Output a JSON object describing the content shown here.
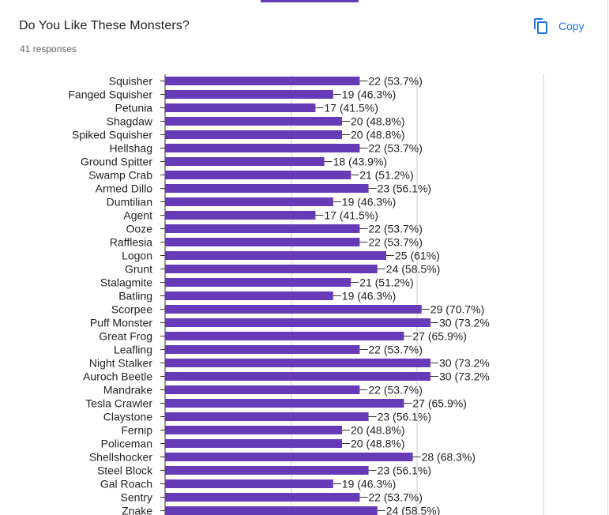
{
  "question": {
    "title": "Do You Like These Monsters?",
    "responses": "41 responses"
  },
  "toolbar": {
    "copy_label": "Copy",
    "copy_icon": "copy-icon",
    "accent_color": "#673ab7",
    "link_color": "#1a73e8"
  },
  "chart_data": {
    "type": "bar",
    "orientation": "horizontal",
    "bar_color": "#673ab7",
    "xlim": [
      0,
      41
    ],
    "grid": true,
    "categories": [
      "Squisher",
      "Fanged Squisher",
      "Petunia",
      "Shagdaw",
      "Spiked Squisher",
      "Hellshag",
      "Ground Spitter",
      "Swamp Crab",
      "Armed Dillo",
      "Dumtilian",
      "Agent",
      "Ooze",
      "Rafflesia",
      "Logon",
      "Grunt",
      "Stalagmite",
      "Batling",
      "Scorpee",
      "Puff Monster",
      "Great Frog",
      "Leafling",
      "Night Stalker",
      "Auroch Beetle",
      "Mandrake",
      "Tesla Crawler",
      "Claystone",
      "Fernip",
      "Policeman",
      "Shellshocker",
      "Steel Block",
      "Gal Roach",
      "Sentry",
      "Znake"
    ],
    "values": [
      22,
      19,
      17,
      20,
      20,
      22,
      18,
      21,
      23,
      19,
      17,
      22,
      22,
      25,
      24,
      21,
      19,
      29,
      30,
      27,
      22,
      30,
      30,
      22,
      27,
      23,
      20,
      20,
      28,
      23,
      19,
      22,
      24
    ],
    "data_labels": [
      "22 (53.7%)",
      "19 (46.3%)",
      "17 (41.5%)",
      "20 (48.8%)",
      "20 (48.8%)",
      "22 (53.7%)",
      "18 (43.9%)",
      "21 (51.2%)",
      "23 (56.1%)",
      "19 (46.3%)",
      "17 (41.5%)",
      "22 (53.7%)",
      "22 (53.7%)",
      "25 (61%)",
      "24 (58.5%)",
      "21 (51.2%)",
      "19 (46.3%)",
      "29 (70.7%)",
      "30 (73.2%",
      "27 (65.9%)",
      "22 (53.7%)",
      "30 (73.2%",
      "30 (73.2%",
      "22 (53.7%)",
      "27 (65.9%)",
      "23 (56.1%)",
      "20 (48.8%)",
      "20 (48.8%)",
      "28 (68.3%)",
      "23 (56.1%)",
      "19 (46.3%)",
      "22 (53.7%)",
      "24 (58.5%)"
    ]
  }
}
